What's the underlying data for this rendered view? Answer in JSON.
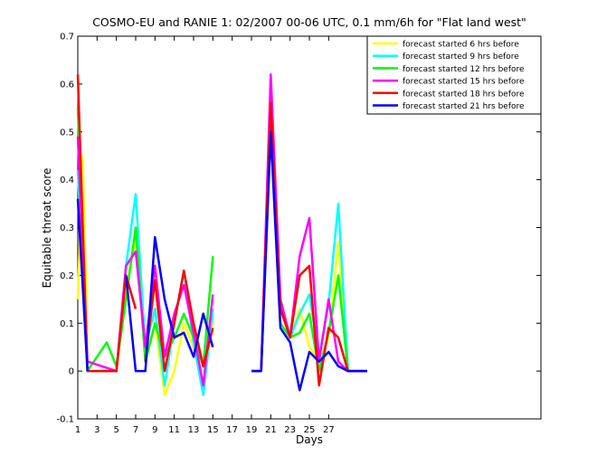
{
  "chart_data": {
    "type": "line",
    "title": "COSMO-EU and RANIE 1: 02/2007 00-06 UTC, 0.1 mm/6h for \"Flat land west\"",
    "xlabel": "Days",
    "ylabel": "Equitable threat score",
    "xlim": [
      1,
      49
    ],
    "ylim": [
      -0.1,
      0.7
    ],
    "xticks": [
      1,
      3,
      5,
      7,
      9,
      11,
      13,
      15,
      17,
      19,
      21,
      23,
      25,
      27
    ],
    "yticks": [
      -0.1,
      0,
      0.1,
      0.2,
      0.3,
      0.4,
      0.5,
      0.6,
      0.7
    ],
    "ytick_labels": [
      "-0.1",
      "0",
      "0.1",
      "0.2",
      "0.3",
      "0.4",
      "0.5",
      "0.6",
      "0.7"
    ],
    "legend_position": "top-right",
    "series": [
      {
        "name": "forecast started 6 hrs before",
        "color": "#ffff00",
        "points": [
          [
            1,
            0.15
          ],
          [
            1.5,
            0.45
          ],
          [
            2,
            0.05
          ],
          [
            4,
            null
          ],
          [
            5,
            0.0
          ],
          [
            6,
            0.17
          ],
          [
            7,
            0.28
          ],
          [
            8,
            0.02
          ],
          [
            9,
            0.1
          ],
          [
            10,
            -0.05
          ],
          [
            11,
            0.0
          ],
          [
            12,
            0.1
          ],
          [
            13,
            0.05
          ],
          [
            14,
            -0.04
          ],
          [
            15,
            0.11
          ],
          [
            null,
            null
          ],
          [
            19,
            0.0
          ],
          [
            20,
            0.0
          ],
          [
            21,
            0.52
          ],
          [
            22,
            0.13
          ],
          [
            23,
            0.07
          ],
          [
            24,
            0.13
          ],
          [
            25,
            0.05
          ],
          [
            26,
            0.02
          ],
          [
            27,
            0.07
          ],
          [
            28,
            0.27
          ],
          [
            29,
            0.0
          ],
          [
            30,
            0.0
          ],
          [
            31,
            0.0
          ]
        ]
      },
      {
        "name": "forecast started 9 hrs before",
        "color": "#00ffff",
        "points": [
          [
            1,
            0.42
          ],
          [
            2,
            0.0
          ],
          [
            5,
            0.0
          ],
          [
            6,
            0.22
          ],
          [
            7,
            0.37
          ],
          [
            8,
            0.05
          ],
          [
            9,
            0.13
          ],
          [
            10,
            -0.03
          ],
          [
            11,
            0.1
          ],
          [
            12,
            0.21
          ],
          [
            13,
            0.06
          ],
          [
            14,
            -0.05
          ],
          [
            15,
            0.13
          ],
          [
            null,
            null
          ],
          [
            19,
            0.0
          ],
          [
            20,
            0.0
          ],
          [
            21,
            0.53
          ],
          [
            22,
            0.15
          ],
          [
            23,
            0.07
          ],
          [
            24,
            0.12
          ],
          [
            25,
            0.16
          ],
          [
            26,
            0.03
          ],
          [
            27,
            0.14
          ],
          [
            28,
            0.35
          ],
          [
            29,
            0.0
          ],
          [
            30,
            0.0
          ],
          [
            31,
            0.0
          ]
        ]
      },
      {
        "name": "forecast started 12 hrs before",
        "color": "#00ff00",
        "points": [
          [
            1,
            0.55
          ],
          [
            2,
            0.0
          ],
          [
            4,
            0.06
          ],
          [
            5,
            0.01
          ],
          [
            6,
            0.15
          ],
          [
            7,
            0.3
          ],
          [
            8,
            0.02
          ],
          [
            9,
            0.1
          ],
          [
            10,
            0.03
          ],
          [
            11,
            0.07
          ],
          [
            12,
            0.12
          ],
          [
            13,
            0.07
          ],
          [
            14,
            0.01
          ],
          [
            15,
            0.24
          ],
          [
            null,
            null
          ],
          [
            19,
            0.0
          ],
          [
            20,
            0.0
          ],
          [
            21,
            0.51
          ],
          [
            22,
            0.1
          ],
          [
            23,
            0.07
          ],
          [
            24,
            0.08
          ],
          [
            25,
            0.12
          ],
          [
            26,
            0.0
          ],
          [
            27,
            0.08
          ],
          [
            28,
            0.2
          ],
          [
            29,
            0.0
          ],
          [
            30,
            0.0
          ],
          [
            31,
            0.0
          ]
        ]
      },
      {
        "name": "forecast started 15 hrs before",
        "color": "#ff00ff",
        "points": [
          [
            1,
            0.49
          ],
          [
            2,
            0.02
          ],
          [
            5,
            0.0
          ],
          [
            6,
            0.22
          ],
          [
            7,
            0.25
          ],
          [
            8,
            0.05
          ],
          [
            9,
            0.22
          ],
          [
            10,
            0.03
          ],
          [
            11,
            0.12
          ],
          [
            12,
            0.18
          ],
          [
            13,
            0.08
          ],
          [
            14,
            -0.03
          ],
          [
            15,
            0.16
          ],
          [
            null,
            null
          ],
          [
            19,
            0.0
          ],
          [
            20,
            0.0
          ],
          [
            21,
            0.62
          ],
          [
            22,
            0.15
          ],
          [
            23,
            0.07
          ],
          [
            24,
            0.24
          ],
          [
            25,
            0.32
          ],
          [
            26,
            0.02
          ],
          [
            27,
            0.15
          ],
          [
            28,
            0.02
          ],
          [
            29,
            0.0
          ],
          [
            30,
            0.0
          ],
          [
            31,
            0.0
          ]
        ]
      },
      {
        "name": "forecast started 18 hrs before",
        "color": "#ff0000",
        "points": [
          [
            1,
            0.62
          ],
          [
            2,
            0.0
          ],
          [
            4,
            0.0
          ],
          [
            5,
            0.0
          ],
          [
            6,
            0.2
          ],
          [
            7,
            0.13
          ],
          [
            null,
            null
          ],
          [
            8,
            0.02
          ],
          [
            9,
            0.19
          ],
          [
            10,
            0.0
          ],
          [
            11,
            0.1
          ],
          [
            12,
            0.21
          ],
          [
            13,
            0.1
          ],
          [
            14,
            0.01
          ],
          [
            15,
            0.09
          ],
          [
            null,
            null
          ],
          [
            19,
            0.0
          ],
          [
            20,
            0.0
          ],
          [
            21,
            0.56
          ],
          [
            22,
            0.13
          ],
          [
            23,
            0.07
          ],
          [
            24,
            0.2
          ],
          [
            25,
            0.22
          ],
          [
            26,
            -0.03
          ],
          [
            27,
            0.09
          ],
          [
            28,
            0.07
          ],
          [
            29,
            0.0
          ],
          [
            30,
            0.0
          ],
          [
            31,
            0.0
          ]
        ]
      },
      {
        "name": "forecast started 21 hrs before",
        "color": "#0000ff",
        "points": [
          [
            1,
            0.36
          ],
          [
            2,
            0.0
          ],
          [
            4,
            null
          ],
          [
            6,
            0.2
          ],
          [
            7,
            0.0
          ],
          [
            8,
            0.0
          ],
          [
            9,
            0.28
          ],
          [
            10,
            0.15
          ],
          [
            11,
            0.07
          ],
          [
            12,
            0.08
          ],
          [
            13,
            0.03
          ],
          [
            14,
            0.12
          ],
          [
            15,
            0.05
          ],
          [
            null,
            null
          ],
          [
            19,
            0.0
          ],
          [
            20,
            0.0
          ],
          [
            21,
            0.5
          ],
          [
            22,
            0.09
          ],
          [
            23,
            0.06
          ],
          [
            24,
            -0.04
          ],
          [
            25,
            0.04
          ],
          [
            26,
            0.02
          ],
          [
            27,
            0.04
          ],
          [
            28,
            0.01
          ],
          [
            29,
            0.0
          ],
          [
            30,
            0.0
          ],
          [
            31,
            0.0
          ]
        ]
      }
    ]
  }
}
